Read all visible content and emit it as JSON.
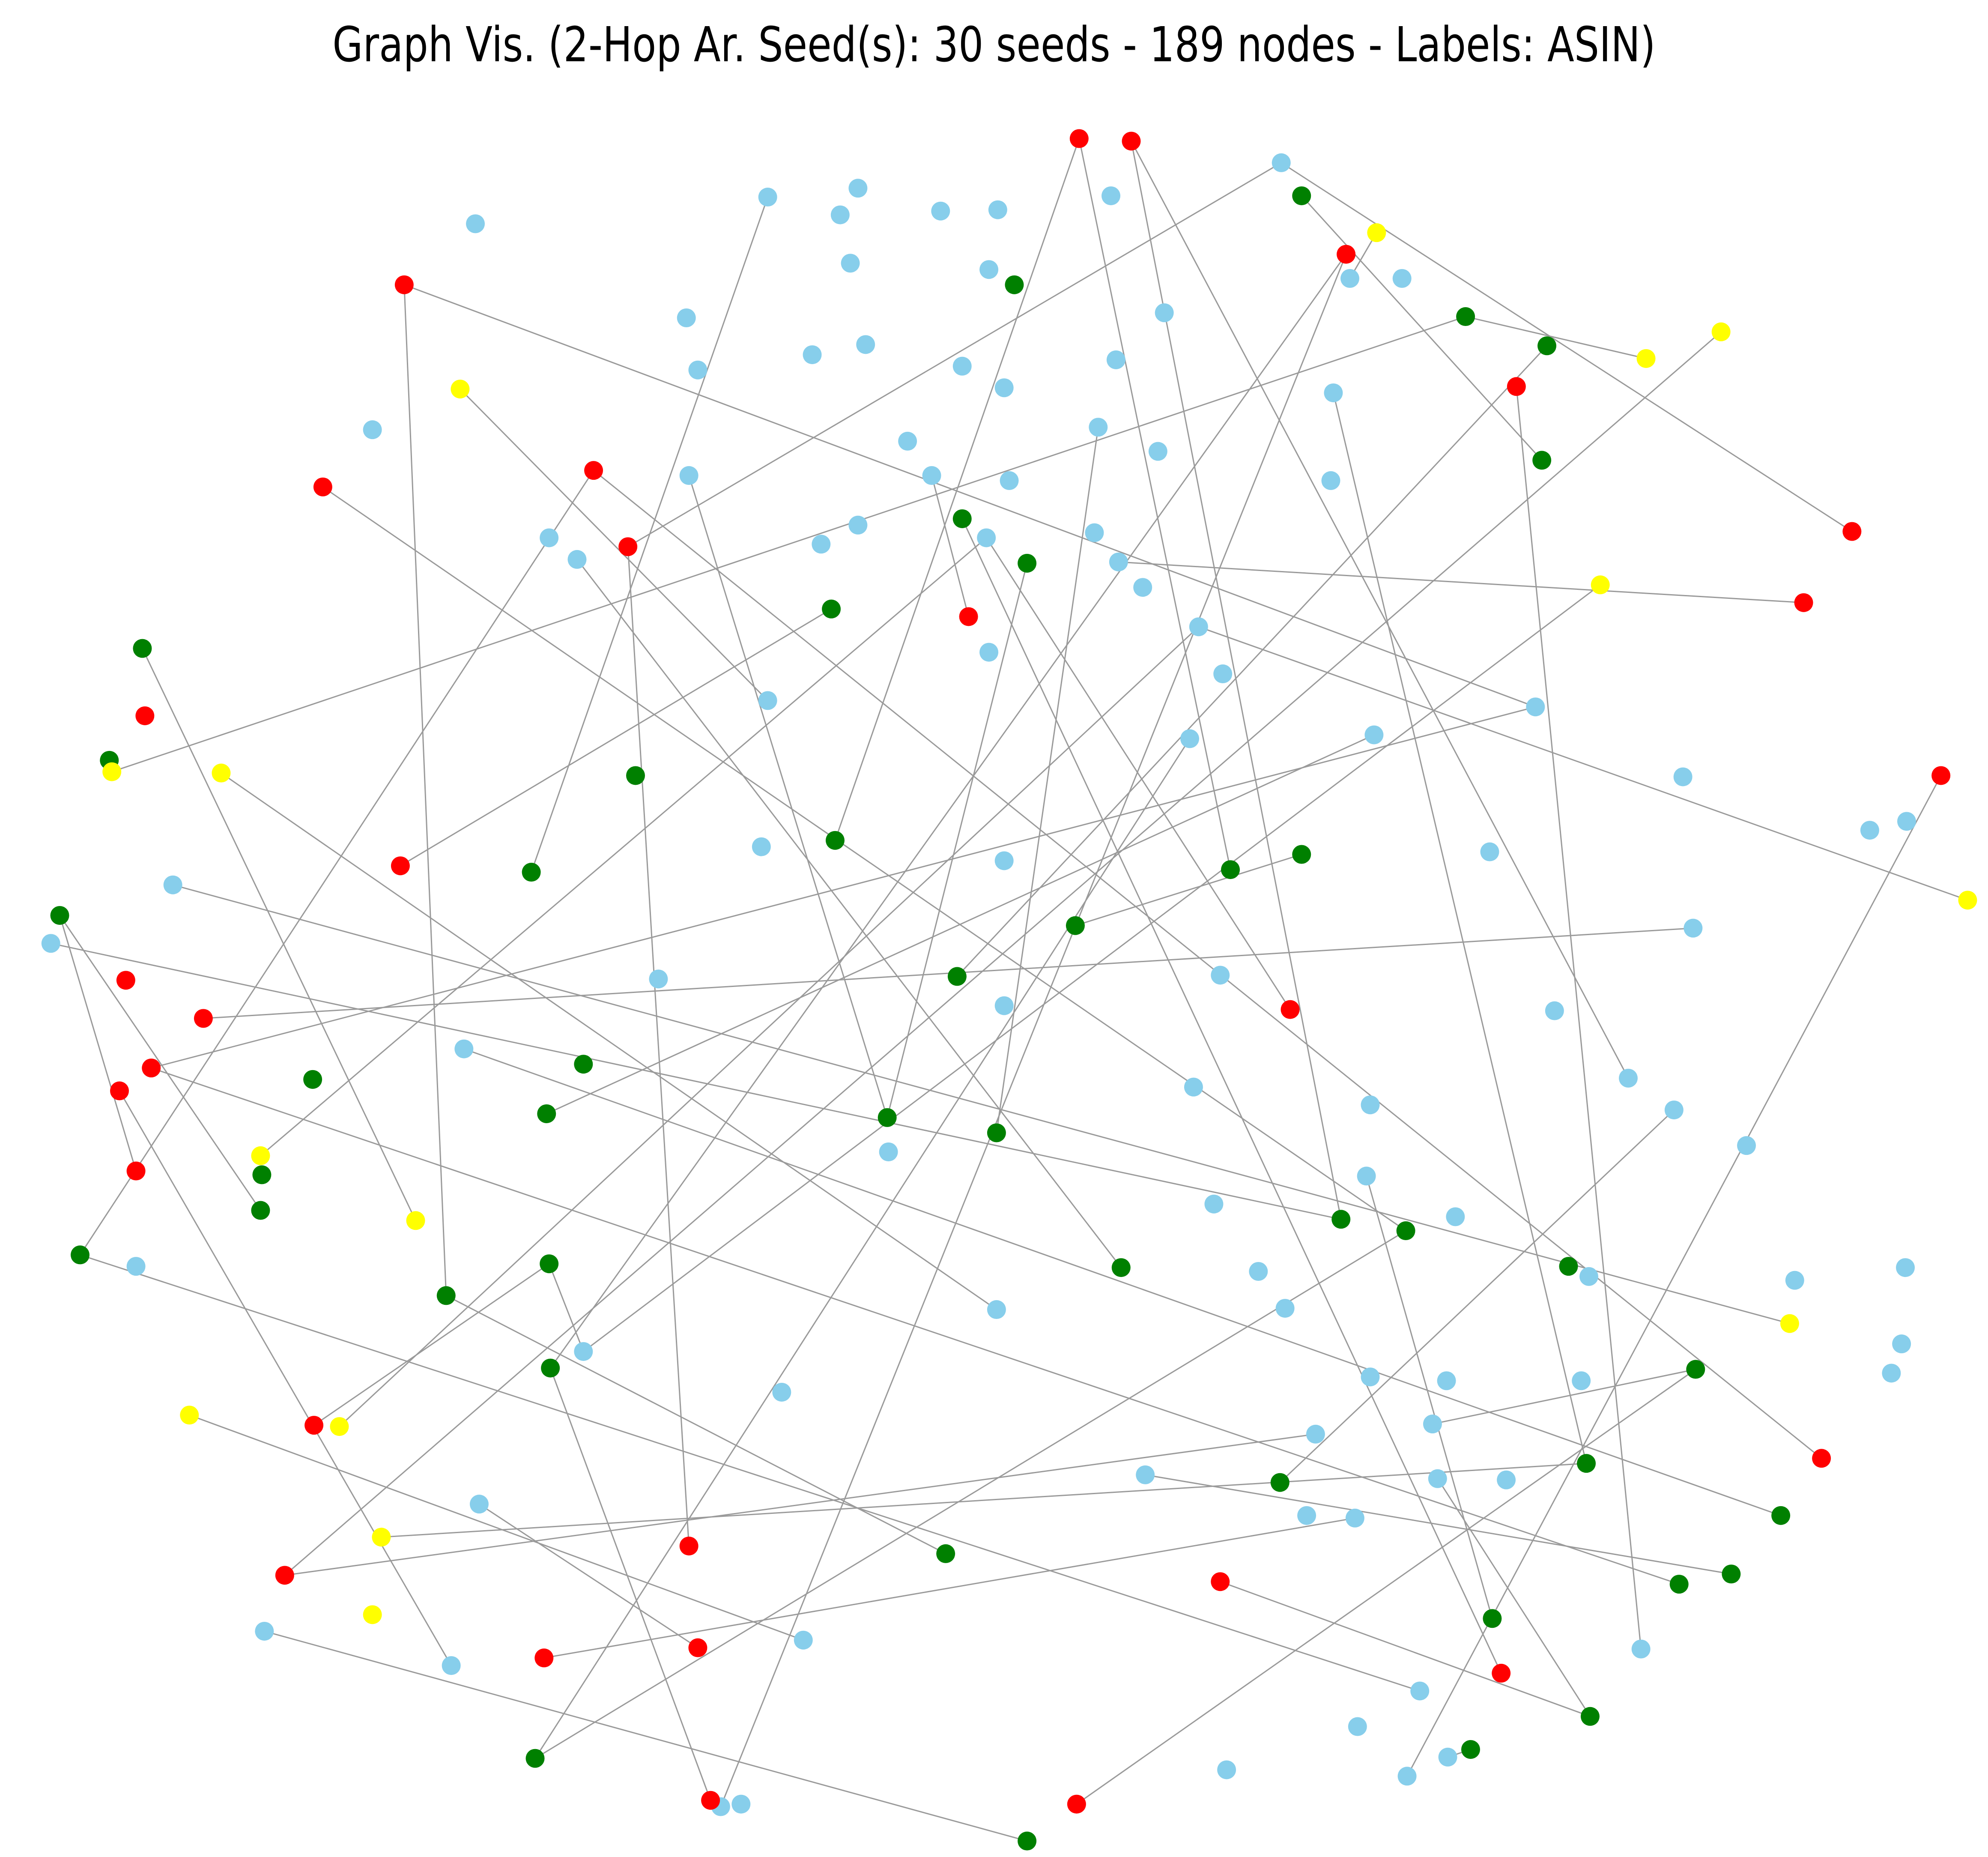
{
  "title": "Graph Vis. (2-Hop Ar. Seed(s): 30 seeds - 189 nodes - Labels: ASIN)",
  "colors": {
    "background": "#ffffff",
    "edge": "#9a9a9a",
    "node_blue": "#87ceeb",
    "node_green": "#008000",
    "node_red": "#ff0000",
    "node_yellow": "#ffff00"
  },
  "graph": {
    "node_count": 189,
    "seed_count": 30
  }
}
